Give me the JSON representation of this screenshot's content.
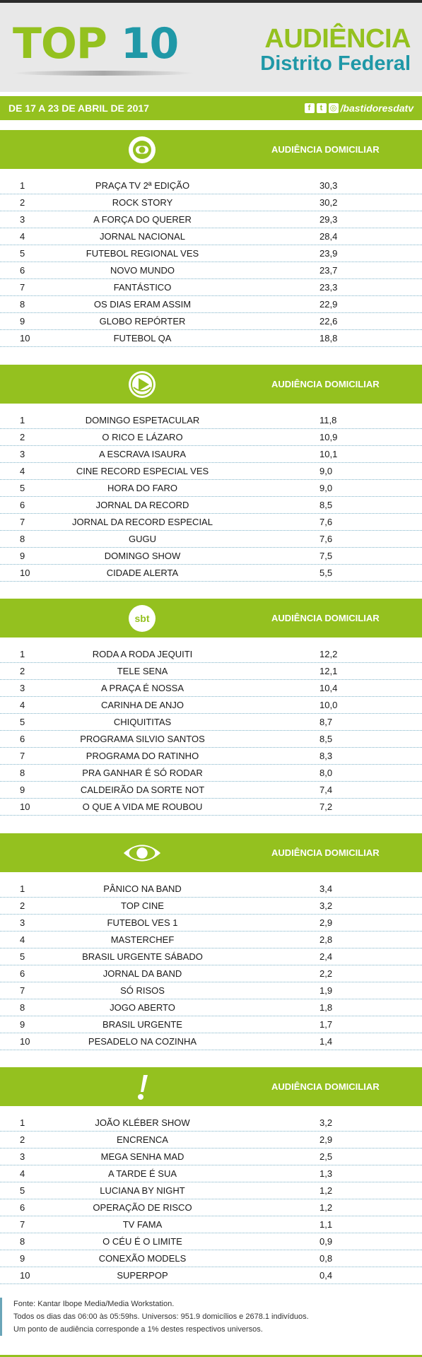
{
  "header": {
    "top_word": "TOP",
    "top_num": "10",
    "aud_line1": "AUDIÊNCIA",
    "aud_line2": "Distrito Federal",
    "period": "DE 17 A 23 DE ABRIL DE 2017",
    "social_handle": "/bastidoresdatv"
  },
  "channels": [
    {
      "logo": "globo-logo-icon",
      "label": "AUDIÊNCIA DOMICILIAR",
      "rows": [
        {
          "rank": "1",
          "program": "PRAÇA TV 2ª EDIÇÃO",
          "value": "30,3"
        },
        {
          "rank": "2",
          "program": "ROCK STORY",
          "value": "30,2"
        },
        {
          "rank": "3",
          "program": "A FORÇA DO QUERER",
          "value": "29,3"
        },
        {
          "rank": "4",
          "program": "JORNAL NACIONAL",
          "value": "28,4"
        },
        {
          "rank": "5",
          "program": "FUTEBOL REGIONAL VES",
          "value": "23,9"
        },
        {
          "rank": "6",
          "program": "NOVO MUNDO",
          "value": "23,7"
        },
        {
          "rank": "7",
          "program": "FANTÁSTICO",
          "value": "23,3"
        },
        {
          "rank": "8",
          "program": "OS DIAS ERAM ASSIM",
          "value": "22,9"
        },
        {
          "rank": "9",
          "program": "GLOBO REPÓRTER",
          "value": "22,6"
        },
        {
          "rank": "10",
          "program": "FUTEBOL QA",
          "value": "18,8"
        }
      ]
    },
    {
      "logo": "record-logo-icon",
      "label": "AUDIÊNCIA DOMICILIAR",
      "rows": [
        {
          "rank": "1",
          "program": "DOMINGO ESPETACULAR",
          "value": "11,8"
        },
        {
          "rank": "2",
          "program": "O RICO E LÁZARO",
          "value": "10,9"
        },
        {
          "rank": "3",
          "program": "A ESCRAVA ISAURA",
          "value": "10,1"
        },
        {
          "rank": "4",
          "program": "CINE RECORD ESPECIAL VES",
          "value": "9,0"
        },
        {
          "rank": "5",
          "program": "HORA DO FARO",
          "value": "9,0"
        },
        {
          "rank": "6",
          "program": "JORNAL DA RECORD",
          "value": "8,5"
        },
        {
          "rank": "7",
          "program": "JORNAL DA RECORD ESPECIAL",
          "value": "7,6"
        },
        {
          "rank": "8",
          "program": "GUGU",
          "value": "7,6"
        },
        {
          "rank": "9",
          "program": "DOMINGO SHOW",
          "value": "7,5"
        },
        {
          "rank": "10",
          "program": "CIDADE ALERTA",
          "value": "5,5"
        }
      ]
    },
    {
      "logo": "sbt-logo-icon",
      "logo_text": "sbt",
      "label": "AUDIÊNCIA DOMICILIAR",
      "rows": [
        {
          "rank": "1",
          "program": "RODA A RODA JEQUITI",
          "value": "12,2"
        },
        {
          "rank": "2",
          "program": "TELE SENA",
          "value": "12,1"
        },
        {
          "rank": "3",
          "program": "A PRAÇA É NOSSA",
          "value": "10,4"
        },
        {
          "rank": "4",
          "program": "CARINHA DE ANJO",
          "value": "10,0"
        },
        {
          "rank": "5",
          "program": "CHIQUITITAS",
          "value": "8,7"
        },
        {
          "rank": "6",
          "program": "PROGRAMA SILVIO SANTOS",
          "value": "8,5"
        },
        {
          "rank": "7",
          "program": "PROGRAMA DO RATINHO",
          "value": "8,3"
        },
        {
          "rank": "8",
          "program": "PRA GANHAR É SÓ RODAR",
          "value": "8,0"
        },
        {
          "rank": "9",
          "program": "CALDEIRÃO DA SORTE NOT",
          "value": "7,4"
        },
        {
          "rank": "10",
          "program": "O QUE A VIDA ME ROUBOU",
          "value": "7,2"
        }
      ]
    },
    {
      "logo": "band-logo-icon",
      "label": "AUDIÊNCIA DOMICILIAR",
      "rows": [
        {
          "rank": "1",
          "program": "PÂNICO NA BAND",
          "value": "3,4"
        },
        {
          "rank": "2",
          "program": "TOP CINE",
          "value": "3,2"
        },
        {
          "rank": "3",
          "program": "FUTEBOL VES 1",
          "value": "2,9"
        },
        {
          "rank": "4",
          "program": "MASTERCHEF",
          "value": "2,8"
        },
        {
          "rank": "5",
          "program": "BRASIL URGENTE SÁBADO",
          "value": "2,4"
        },
        {
          "rank": "6",
          "program": "JORNAL DA BAND",
          "value": "2,2"
        },
        {
          "rank": "7",
          "program": "SÓ RISOS",
          "value": "1,9"
        },
        {
          "rank": "8",
          "program": "JOGO ABERTO",
          "value": "1,8"
        },
        {
          "rank": "9",
          "program": "BRASIL URGENTE",
          "value": "1,7"
        },
        {
          "rank": "10",
          "program": "PESADELO NA COZINHA",
          "value": "1,4"
        }
      ]
    },
    {
      "logo": "redetv-logo-icon",
      "label": "AUDIÊNCIA DOMICILIAR",
      "rows": [
        {
          "rank": "1",
          "program": "JOÃO KLÉBER SHOW",
          "value": "3,2"
        },
        {
          "rank": "2",
          "program": "ENCRENCA",
          "value": "2,9"
        },
        {
          "rank": "3",
          "program": "MEGA SENHA MAD",
          "value": "2,5"
        },
        {
          "rank": "4",
          "program": "A TARDE É SUA",
          "value": "1,3"
        },
        {
          "rank": "5",
          "program": "LUCIANA BY NIGHT",
          "value": "1,2"
        },
        {
          "rank": "6",
          "program": "OPERAÇÃO DE RISCO",
          "value": "1,2"
        },
        {
          "rank": "7",
          "program": "TV FAMA",
          "value": "1,1"
        },
        {
          "rank": "8",
          "program": "O CÉU É O LIMITE",
          "value": "0,9"
        },
        {
          "rank": "9",
          "program": "CONEXÃO MODELS",
          "value": "0,8"
        },
        {
          "rank": "10",
          "program": "SUPERPOP",
          "value": "0,4"
        }
      ]
    }
  ],
  "footer": {
    "line1": "Fonte: Kantar Ibope Media/Media Workstation.",
    "line2": "Todos os dias das 06:00 às 05:59hs. Universos: 951.9 domicílios e 2678.1 indivíduos.",
    "line3": "Um ponto de audiência corresponde a 1% destes respectivos universos."
  },
  "colors": {
    "green": "#94c11f",
    "teal": "#1f98a7"
  }
}
